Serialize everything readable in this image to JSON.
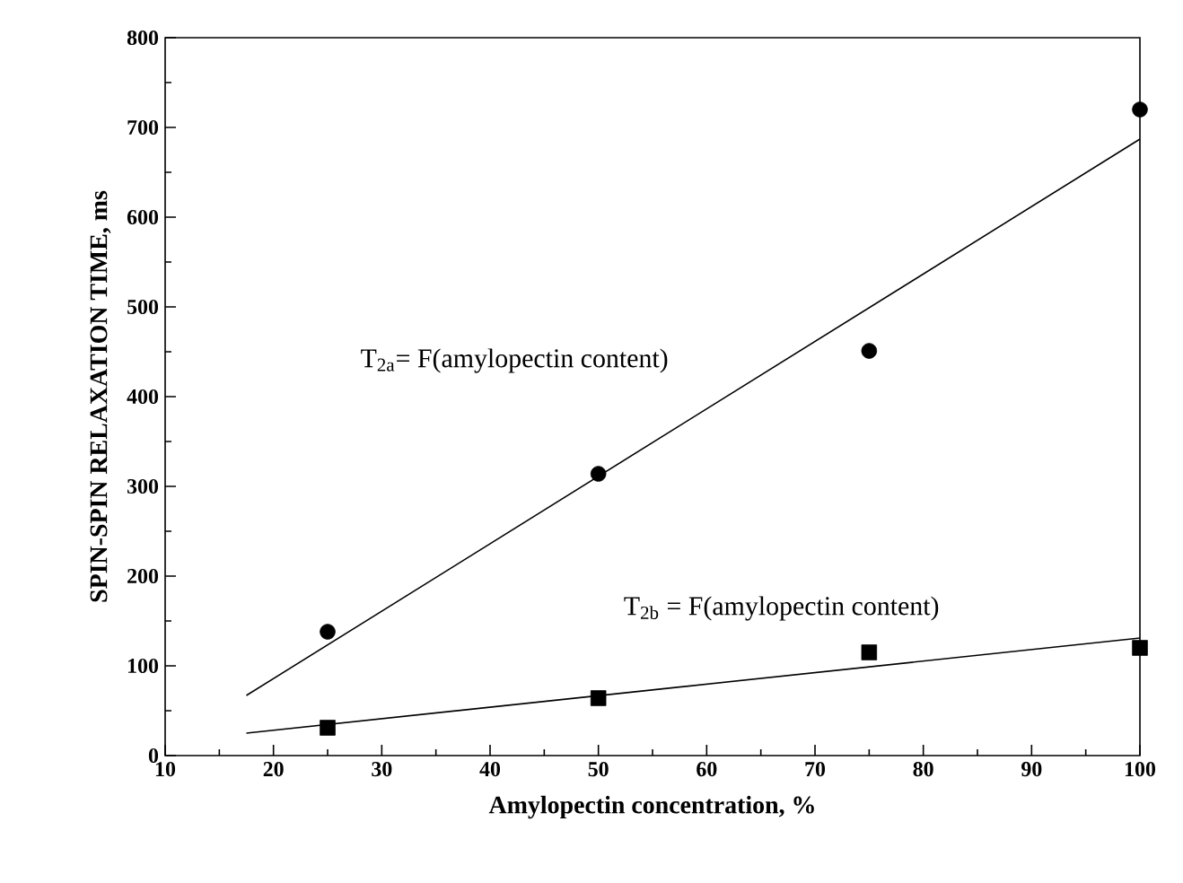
{
  "chart_data": {
    "type": "scatter",
    "xlabel": "Amylopectin concentration, %",
    "ylabel": "SPIN-SPIN RELAXATION TIME, ms",
    "xlim": [
      10,
      100
    ],
    "xticks": [
      10,
      20,
      30,
      40,
      50,
      60,
      70,
      80,
      90,
      100
    ],
    "ylim": [
      0,
      800
    ],
    "yticks": [
      0,
      100,
      200,
      300,
      400,
      500,
      600,
      700,
      800
    ],
    "grid": false,
    "series": [
      {
        "marker": "circle",
        "color": "#000000",
        "x": [
          25,
          50,
          75,
          100
        ],
        "values": [
          138,
          314,
          451,
          720
        ]
      },
      {
        "type": "line",
        "name": "T$_{2a}$= F(amylopectin content)",
        "color": "#000000",
        "x": [
          17.5,
          100
        ],
        "values": [
          67,
          687
        ]
      },
      {
        "marker": "square",
        "color": "#000000",
        "x": [
          25,
          50,
          75,
          100
        ],
        "values": [
          31,
          64,
          115,
          120
        ]
      },
      {
        "type": "line",
        "name": "T$_{2b}$ = F(amylopectin content)",
        "color": "#000000",
        "x": [
          17.5,
          100
        ],
        "values": [
          25,
          131
        ]
      }
    ]
  }
}
